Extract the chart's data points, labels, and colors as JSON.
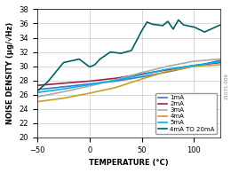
{
  "title": "",
  "xlabel": "TEMPERATURE (°C)",
  "ylabel": "NOISE DENSITY (μg/√Hz)",
  "xlim": [
    -50,
    125
  ],
  "ylim": [
    20,
    38
  ],
  "xticks": [
    -50,
    0,
    50,
    100
  ],
  "yticks": [
    20,
    22,
    24,
    26,
    28,
    30,
    32,
    34,
    36,
    38
  ],
  "series": [
    {
      "label": "1mA",
      "color": "#4472C4",
      "lw": 1.2,
      "x": [
        -50,
        -25,
        0,
        25,
        50,
        75,
        100,
        125
      ],
      "y": [
        26.7,
        27.1,
        27.5,
        27.9,
        28.5,
        29.2,
        30.0,
        30.8
      ]
    },
    {
      "label": "2mA",
      "color": "#9B2335",
      "lw": 1.2,
      "x": [
        -50,
        -25,
        0,
        25,
        50,
        75,
        100,
        125
      ],
      "y": [
        27.3,
        27.6,
        27.9,
        28.3,
        28.9,
        29.5,
        30.1,
        30.5
      ]
    },
    {
      "label": "3mA",
      "color": "#A9A9A9",
      "lw": 1.2,
      "x": [
        -50,
        -25,
        0,
        25,
        50,
        75,
        100,
        125
      ],
      "y": [
        25.7,
        26.4,
        27.2,
        28.1,
        29.1,
        30.0,
        30.7,
        31.0
      ]
    },
    {
      "label": "4mA",
      "color": "#C8A020",
      "lw": 1.2,
      "x": [
        -50,
        -25,
        0,
        25,
        50,
        75,
        100,
        125
      ],
      "y": [
        25.0,
        25.5,
        26.2,
        27.0,
        28.2,
        29.3,
        30.0,
        30.2
      ]
    },
    {
      "label": "5mA",
      "color": "#00B0F0",
      "lw": 1.2,
      "x": [
        -50,
        -25,
        0,
        25,
        50,
        75,
        100,
        125
      ],
      "y": [
        26.3,
        26.8,
        27.4,
        28.0,
        28.8,
        29.6,
        30.1,
        30.6
      ]
    },
    {
      "label": "4mA TO 20mA",
      "color": "#006060",
      "lw": 1.2,
      "x": [
        -50,
        -40,
        -25,
        -10,
        0,
        5,
        10,
        20,
        30,
        40,
        50,
        55,
        60,
        70,
        75,
        80,
        85,
        90,
        100,
        110,
        125
      ],
      "y": [
        26.5,
        27.8,
        30.5,
        31.0,
        29.9,
        30.2,
        31.0,
        32.0,
        31.8,
        32.2,
        35.0,
        36.2,
        35.9,
        35.7,
        36.3,
        35.2,
        36.5,
        35.8,
        35.5,
        34.8,
        35.8
      ]
    }
  ],
  "legend_loc": "lower right",
  "grid": true,
  "bg_color": "#FFFFFF",
  "font_size": 6,
  "label_fontsize": 6,
  "tick_fontsize": 6
}
